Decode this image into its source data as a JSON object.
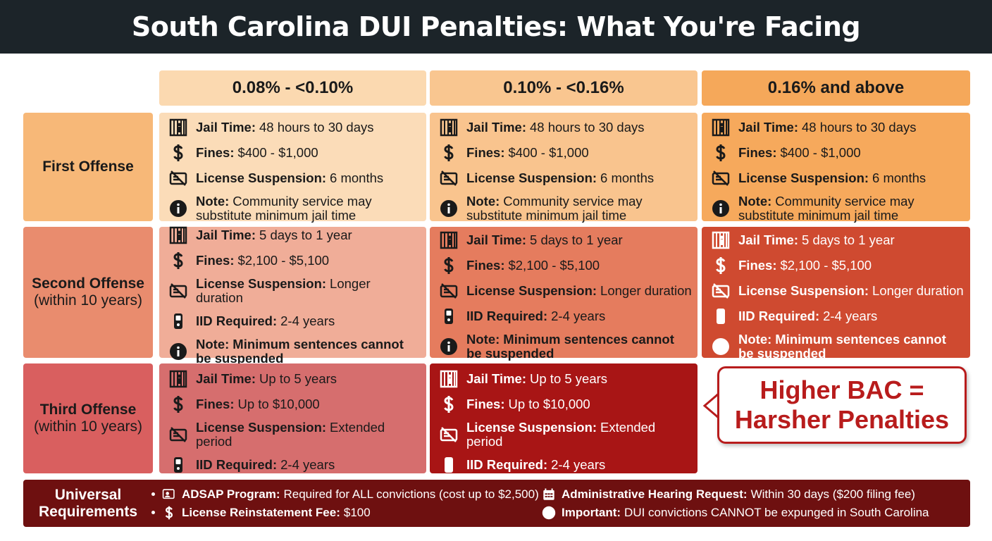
{
  "title": "South Carolina DUI Penalties: What You're Facing",
  "columns": [
    "0.08% - <0.10%",
    "0.10% - <0.16%",
    "0.16% and above"
  ],
  "rows": [
    {
      "label": "First Offense",
      "cells": [
        [
          {
            "label": "Jail Time:",
            "text": "48 hours to 30 days"
          },
          {
            "label": "Fines:",
            "text": "$400 - $1,000"
          },
          {
            "label": "License Suspension:",
            "text": "6 months"
          },
          {
            "label": "Note:",
            "text": "Community service may substitute minimum jail time"
          }
        ],
        [
          {
            "label": "Jail Time:",
            "text": "48 hours to 30 days"
          },
          {
            "label": "Fines:",
            "text": "$400 - $1,000"
          },
          {
            "label": "License Suspension:",
            "text": "6 months"
          },
          {
            "label": "Note:",
            "text": "Community service may substitute minimum jail time"
          }
        ],
        [
          {
            "label": "Jail Time:",
            "text": "48 hours to 30 days"
          },
          {
            "label": "Fines:",
            "text": "$400 - $1,000"
          },
          {
            "label": "License Suspension:",
            "text": "6 months"
          },
          {
            "label": "Note:",
            "text": "Community service may substitute minimum jail time"
          }
        ]
      ]
    },
    {
      "label": "Second Offense",
      "sublabel": "(within 10 years)",
      "cells": [
        [
          {
            "label": "Jail Time:",
            "text": "5 days to 1 year"
          },
          {
            "label": "Fines:",
            "text": "$2,100 - $5,100"
          },
          {
            "label": "License Suspension:",
            "text": "Longer duration"
          },
          {
            "label": "IID Required:",
            "text": "2-4 years"
          },
          {
            "label": "Note:",
            "text": "Minimum sentences cannot be suspended"
          }
        ],
        [
          {
            "label": "Jail Time:",
            "text": "5 days to 1 year"
          },
          {
            "label": "Fines:",
            "text": "$2,100 - $5,100"
          },
          {
            "label": "License Suspension:",
            "text": "Longer duration"
          },
          {
            "label": "IID Required:",
            "text": "2-4 years"
          },
          {
            "label": "Note:",
            "text": "Minimum sentences cannot be suspended"
          }
        ],
        [
          {
            "label": "Jail Time:",
            "text": "5 days to 1 year"
          },
          {
            "label": "Fines:",
            "text": "$2,100 - $5,100"
          },
          {
            "label": "License Suspension:",
            "text": "Longer duration"
          },
          {
            "label": "IID Required:",
            "text": "2-4 years"
          },
          {
            "label": "Note:",
            "text": "Minimum sentences cannot be suspended"
          }
        ]
      ]
    },
    {
      "label": "Third Offense",
      "sublabel": "(within 10 years)",
      "cells": [
        [
          {
            "label": "Jail Time:",
            "text": "Up to 5 years"
          },
          {
            "label": "Fines:",
            "text": "Up to $10,000"
          },
          {
            "label": "License Suspension:",
            "text": "Extended period"
          },
          {
            "label": "IID Required:",
            "text": "2-4 years"
          }
        ],
        [
          {
            "label": "Jail Time:",
            "text": "Up to 5 years"
          },
          {
            "label": "Fines:",
            "text": "Up to $10,000"
          },
          {
            "label": "License Suspension:",
            "text": "Extended period"
          },
          {
            "label": "IID Required:",
            "text": "2-4 years"
          }
        ]
      ],
      "callout": "Higher BAC = Harsher Penalties"
    }
  ],
  "universal": {
    "title": "Universal Requirements",
    "items": [
      {
        "label": "ADSAP Program:",
        "text": "Required for ALL convictions (cost up to $2,500)"
      },
      {
        "label": "Administrative Hearing Request:",
        "text": "Within 30 days ($200 filing fee)"
      },
      {
        "label": "License Reinstatement Fee:",
        "text": "$100"
      },
      {
        "label": "Important:",
        "text": "DUI convictions CANNOT be expunged in South Carolina"
      }
    ]
  }
}
